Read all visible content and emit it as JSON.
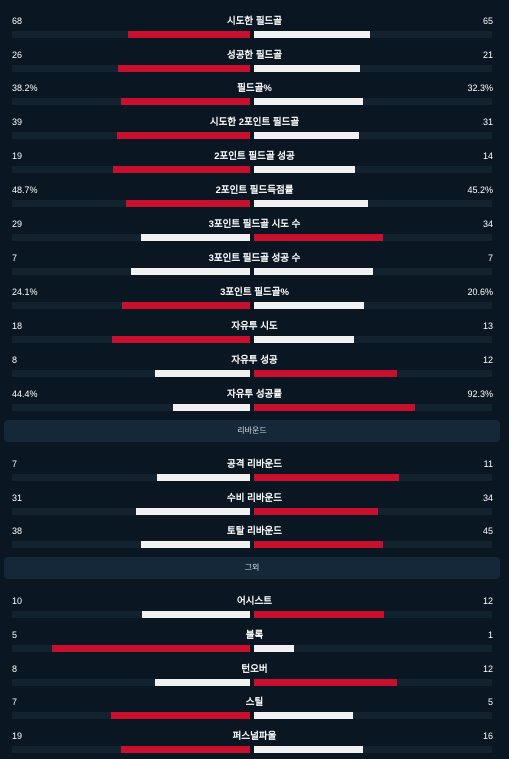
{
  "colors": {
    "background": "#0a1722",
    "winner_bar": "#c8102e",
    "other_bar": "#f1f1f1",
    "track": "#12232f",
    "section_bg": "#14283a"
  },
  "sections": [
    {
      "header": "",
      "stats": [
        {
          "label": "시도한 필드골",
          "home": "68",
          "away": "65",
          "home_pct": 0.512,
          "away_pct": 0.488
        },
        {
          "label": "성공한 필드골",
          "home": "26",
          "away": "21",
          "home_pct": 0.553,
          "away_pct": 0.447
        },
        {
          "label": "필드골%",
          "home": "38.2%",
          "away": "32.3%",
          "home_pct": 0.542,
          "away_pct": 0.458
        },
        {
          "label": "시도한 2포인트 필드골",
          "home": "39",
          "away": "31",
          "home_pct": 0.557,
          "away_pct": 0.443
        },
        {
          "label": "2포인트 필드골 성공",
          "home": "19",
          "away": "14",
          "home_pct": 0.576,
          "away_pct": 0.424
        },
        {
          "label": "2포인트 필드득점률",
          "home": "48.7%",
          "away": "45.2%",
          "home_pct": 0.519,
          "away_pct": 0.481
        },
        {
          "label": "3포인트 필드골 시도 수",
          "home": "29",
          "away": "34",
          "home_pct": 0.46,
          "away_pct": 0.54
        },
        {
          "label": "3포인트 필드골 성공 수",
          "home": "7",
          "away": "7",
          "home_pct": 0.5,
          "away_pct": 0.5
        },
        {
          "label": "3포인트 필드골%",
          "home": "24.1%",
          "away": "20.6%",
          "home_pct": 0.539,
          "away_pct": 0.461
        },
        {
          "label": "자유투 시도",
          "home": "18",
          "away": "13",
          "home_pct": 0.581,
          "away_pct": 0.419
        },
        {
          "label": "자유투 성공",
          "home": "8",
          "away": "12",
          "home_pct": 0.4,
          "away_pct": 0.6
        },
        {
          "label": "자유투 성공률",
          "home": "44.4%",
          "away": "92.3%",
          "home_pct": 0.325,
          "away_pct": 0.675
        }
      ]
    },
    {
      "header": "리바운드",
      "stats": [
        {
          "label": "공격 리바운드",
          "home": "7",
          "away": "11",
          "home_pct": 0.389,
          "away_pct": 0.611
        },
        {
          "label": "수비 리바운드",
          "home": "31",
          "away": "34",
          "home_pct": 0.477,
          "away_pct": 0.523
        },
        {
          "label": "토탈 리바운드",
          "home": "38",
          "away": "45",
          "home_pct": 0.458,
          "away_pct": 0.542
        }
      ]
    },
    {
      "header": "그외",
      "stats": [
        {
          "label": "어시스트",
          "home": "10",
          "away": "12",
          "home_pct": 0.455,
          "away_pct": 0.545
        },
        {
          "label": "블록",
          "home": "5",
          "away": "1",
          "home_pct": 0.833,
          "away_pct": 0.167
        },
        {
          "label": "턴오버",
          "home": "8",
          "away": "12",
          "home_pct": 0.4,
          "away_pct": 0.6
        },
        {
          "label": "스틸",
          "home": "7",
          "away": "5",
          "home_pct": 0.583,
          "away_pct": 0.417
        },
        {
          "label": "퍼스널파울",
          "home": "19",
          "away": "16",
          "home_pct": 0.543,
          "away_pct": 0.457
        }
      ]
    }
  ]
}
